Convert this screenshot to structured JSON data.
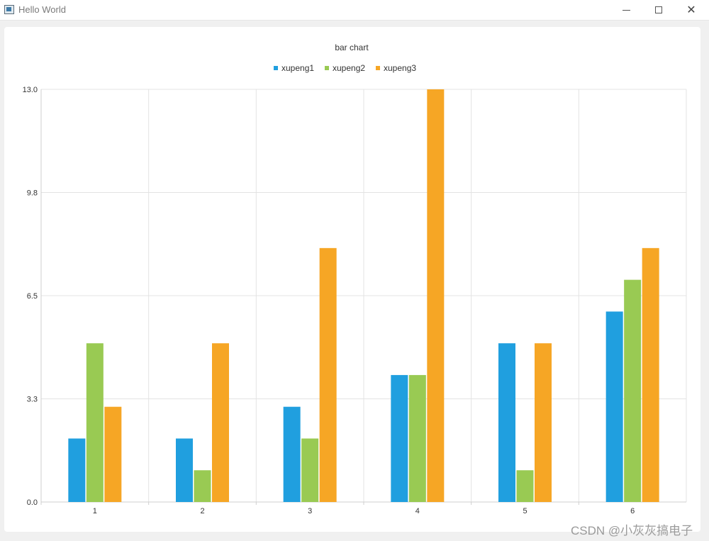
{
  "window": {
    "title": "Hello World",
    "minimize_icon": "minimize-icon",
    "maximize_icon": "maximize-icon",
    "close_icon": "close-icon"
  },
  "watermark": "CSDN @小灰灰搞电子",
  "chart_data": {
    "type": "bar",
    "title": "bar chart",
    "categories": [
      "1",
      "2",
      "3",
      "4",
      "5",
      "6"
    ],
    "series": [
      {
        "name": "xupeng1",
        "color": "#209fdf",
        "values": [
          2,
          2,
          3,
          4,
          5,
          6
        ]
      },
      {
        "name": "xupeng2",
        "color": "#99ca53",
        "values": [
          5,
          1,
          2,
          4,
          1,
          7
        ]
      },
      {
        "name": "xupeng3",
        "color": "#f6a625",
        "values": [
          3,
          5,
          8,
          13,
          5,
          8
        ]
      }
    ],
    "ylim": [
      0,
      13
    ],
    "yticks": [
      "0.0",
      "3.3",
      "6.5",
      "9.8",
      "13.0"
    ],
    "grid": true,
    "legend_position": "top-center"
  }
}
